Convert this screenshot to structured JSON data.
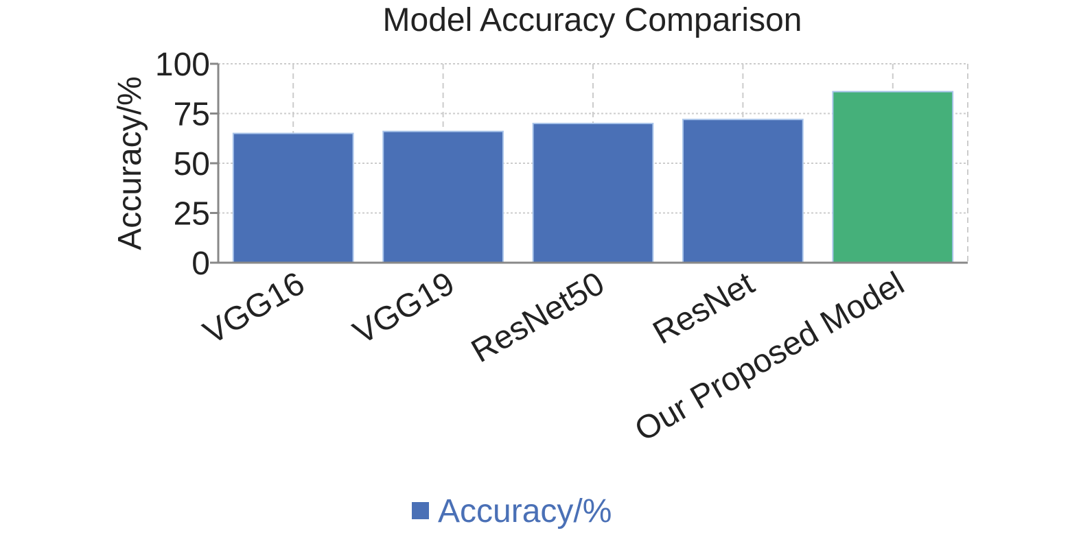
{
  "chart_data": {
    "type": "bar",
    "title": "Model Accuracy Comparison",
    "xlabel": "",
    "ylabel": "Accuracy/%",
    "ylim": [
      0,
      100
    ],
    "yticks": [
      0,
      25,
      50,
      75,
      100
    ],
    "ytick_labels": [
      "0",
      "25",
      "50",
      "75",
      "100"
    ],
    "categories": [
      "VGG16",
      "VGG19",
      "ResNet50",
      "ResNet",
      "Our Proposed Model"
    ],
    "values": [
      65,
      66,
      70,
      72,
      86
    ],
    "bar_colors": [
      "#4a70b6",
      "#4a70b6",
      "#4a70b6",
      "#4a70b6",
      "#45b07a"
    ],
    "grid": true,
    "legend": {
      "placement": "bottom-center",
      "entries": [
        {
          "label": "Accuracy/%",
          "color": "#4a70b6"
        }
      ]
    }
  }
}
